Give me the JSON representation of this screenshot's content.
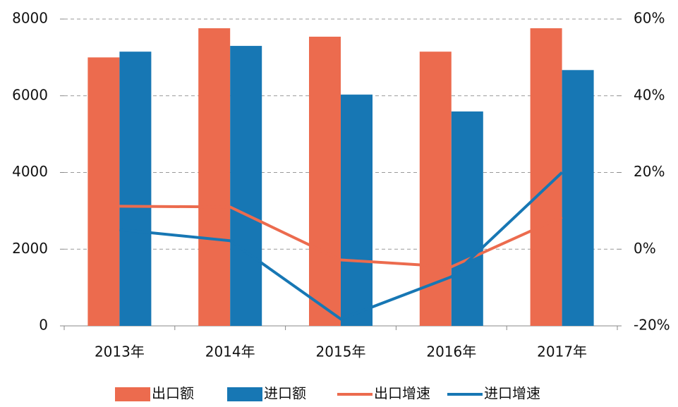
{
  "chart_data": {
    "type": "combo",
    "categories": [
      "2013年",
      "2014年",
      "2015年",
      "2016年",
      "2017年"
    ],
    "series": [
      {
        "name": "出口额",
        "type": "bar",
        "color": "#ec6b4e",
        "values": [
          7000,
          7760,
          7540,
          7150,
          7760
        ]
      },
      {
        "name": "进口额",
        "type": "bar",
        "color": "#1777b4",
        "values": [
          7150,
          7300,
          6030,
          5590,
          6670
        ]
      },
      {
        "name": "出口增速",
        "type": "line",
        "axis": "y2",
        "color": "#ec6b4e",
        "values": [
          11.2,
          11.0,
          -2.8,
          -4.6,
          8.4
        ]
      },
      {
        "name": "进口增速",
        "type": "line",
        "axis": "y2",
        "color": "#1777b4",
        "values": [
          5.1,
          2.2,
          -18.2,
          -7.2,
          20.0
        ]
      }
    ],
    "ylim": [
      0,
      8000
    ],
    "yticks": [
      0,
      2000,
      4000,
      6000,
      8000
    ],
    "y2lim": [
      -20,
      60
    ],
    "y2ticks": [
      {
        "value": -20,
        "label": "-20%"
      },
      {
        "value": 0,
        "label": "0%"
      },
      {
        "value": 20,
        "label": "20%"
      },
      {
        "value": 40,
        "label": "40%"
      },
      {
        "value": 60,
        "label": "60%"
      }
    ],
    "grid": true,
    "legend": "bottom"
  }
}
